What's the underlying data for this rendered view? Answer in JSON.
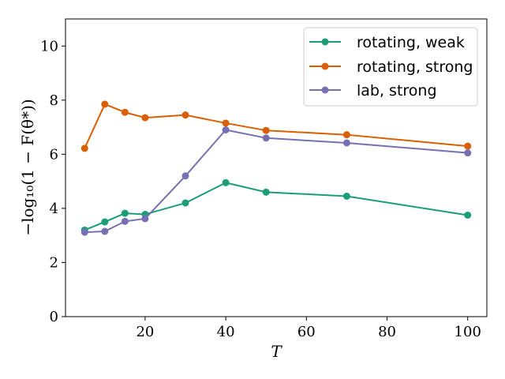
{
  "chart_data": {
    "type": "line",
    "title": "",
    "xlabel": "T",
    "ylabel": "−log₁₀(1 − F(θ*))",
    "xlim": [
      0.25,
      104.75
    ],
    "ylim": [
      0,
      11
    ],
    "xticks": [
      20,
      40,
      60,
      80,
      100
    ],
    "yticks": [
      0,
      2,
      4,
      6,
      8,
      10
    ],
    "x": [
      5,
      10,
      15,
      20,
      30,
      40,
      50,
      70,
      100
    ],
    "legend_position": "top-right",
    "grid": false,
    "series": [
      {
        "name": "rotating, weak",
        "color": "#1b9e77",
        "values": [
          3.2,
          3.5,
          3.82,
          3.78,
          4.2,
          4.95,
          4.6,
          4.45,
          3.75
        ]
      },
      {
        "name": "rotating, strong",
        "color": "#d95f02",
        "values": [
          6.22,
          7.85,
          7.55,
          7.35,
          7.45,
          7.15,
          6.88,
          6.72,
          6.3
        ]
      },
      {
        "name": "lab, strong",
        "color": "#7570b3",
        "values": [
          3.12,
          3.15,
          3.52,
          3.62,
          5.2,
          6.9,
          6.6,
          6.42,
          6.05
        ]
      }
    ]
  }
}
